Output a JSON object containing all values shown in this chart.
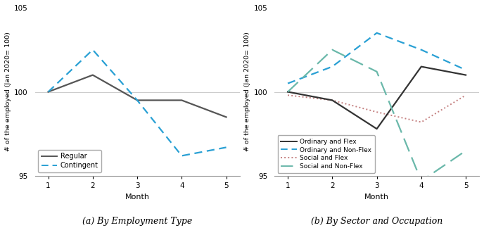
{
  "months": [
    1,
    2,
    3,
    4,
    5
  ],
  "panel_a": {
    "regular": [
      100,
      101.0,
      99.5,
      99.5,
      98.5
    ],
    "contingent": [
      100,
      102.5,
      99.5,
      96.2,
      96.7
    ]
  },
  "panel_b": {
    "ordinary_flex": [
      100,
      99.5,
      97.8,
      101.5,
      101.0
    ],
    "ordinary_nonflex": [
      100.5,
      101.5,
      103.5,
      102.5,
      101.3
    ],
    "social_flex": [
      99.8,
      99.5,
      98.8,
      98.2,
      99.8
    ],
    "social_nonflex": [
      100,
      102.5,
      101.2,
      94.7,
      96.5
    ]
  },
  "colors": {
    "regular": "#555555",
    "contingent": "#29a0d4",
    "ordinary_flex": "#333333",
    "ordinary_nonflex": "#29a0d4",
    "social_flex": "#c47f7f",
    "social_nonflex": "#6ab8aa"
  },
  "ylim": [
    95,
    105
  ],
  "yticks": [
    95,
    100,
    105
  ],
  "xticks": [
    1,
    2,
    3,
    4,
    5
  ],
  "xlabel": "Month",
  "ylabel": "# of the employed (Jan 2020= 100)",
  "caption_a": "(a) By Employment Type",
  "caption_b": "(b) By Sector and Occupation",
  "legend_a": [
    "Regular",
    "Contingent"
  ],
  "legend_b": [
    "Ordinary and Flex",
    "Ordinary and Non-Flex",
    "Social and Flex",
    "Social and Non-Flex"
  ]
}
